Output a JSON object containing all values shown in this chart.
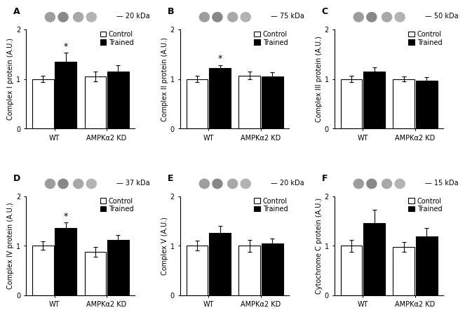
{
  "panels": [
    {
      "label": "A",
      "ylabel": "Complex I protein (A.U.)",
      "kda": "20 kDa",
      "groups": [
        "WT",
        "AMPKα2 KD"
      ],
      "control_vals": [
        1.0,
        1.05
      ],
      "trained_vals": [
        1.35,
        1.15
      ],
      "control_err": [
        0.07,
        0.1
      ],
      "trained_err": [
        0.18,
        0.12
      ],
      "sig": [
        true,
        false
      ]
    },
    {
      "label": "B",
      "ylabel": "Complex II protein (A.U.)",
      "kda": "75 kDa",
      "groups": [
        "WT",
        "AMPKα2 KD"
      ],
      "control_vals": [
        1.0,
        1.07
      ],
      "trained_vals": [
        1.22,
        1.05
      ],
      "control_err": [
        0.06,
        0.08
      ],
      "trained_err": [
        0.06,
        0.08
      ],
      "sig": [
        true,
        false
      ]
    },
    {
      "label": "C",
      "ylabel": "Complex III protein (A.U.)",
      "kda": "50 kDa",
      "groups": [
        "WT",
        "AMPKα2 KD"
      ],
      "control_vals": [
        1.0,
        1.0
      ],
      "trained_vals": [
        1.15,
        0.97
      ],
      "control_err": [
        0.06,
        0.05
      ],
      "trained_err": [
        0.08,
        0.06
      ],
      "sig": [
        false,
        false
      ]
    },
    {
      "label": "D",
      "ylabel": "Complex IV protein (A.U.)",
      "kda": "37 kDa",
      "groups": [
        "WT",
        "AMPKα2 KD"
      ],
      "control_vals": [
        1.0,
        0.88
      ],
      "trained_vals": [
        1.35,
        1.12
      ],
      "control_err": [
        0.08,
        0.1
      ],
      "trained_err": [
        0.12,
        0.1
      ],
      "sig": [
        true,
        false
      ]
    },
    {
      "label": "E",
      "ylabel": "Complex V (A.U.)",
      "kda": "20 kDa",
      "groups": [
        "WT",
        "AMPKα2 KD"
      ],
      "control_vals": [
        1.0,
        1.0
      ],
      "trained_vals": [
        1.25,
        1.05
      ],
      "control_err": [
        0.1,
        0.12
      ],
      "trained_err": [
        0.15,
        0.1
      ],
      "sig": [
        false,
        false
      ]
    },
    {
      "label": "F",
      "ylabel": "Cytochrome C protein (A.U.)",
      "kda": "15 kDa",
      "groups": [
        "WT",
        "AMPKα2 KD"
      ],
      "control_vals": [
        1.0,
        0.97
      ],
      "trained_vals": [
        1.45,
        1.18
      ],
      "control_err": [
        0.12,
        0.1
      ],
      "trained_err": [
        0.28,
        0.18
      ],
      "sig": [
        false,
        false
      ]
    }
  ],
  "ylim": [
    0,
    2
  ],
  "yticks": [
    0,
    1,
    2
  ],
  "bar_width": 0.32,
  "control_color": "white",
  "trained_color": "black",
  "edge_color": "black",
  "background_color": "white",
  "fontsize_label": 7.0,
  "fontsize_tick": 7.0,
  "fontsize_panel": 9,
  "fontsize_kda": 7.0,
  "fontsize_legend": 7.0,
  "fontsize_star": 9,
  "group_centers": [
    0.0,
    0.78
  ],
  "xlim": [
    -0.42,
    1.2
  ]
}
